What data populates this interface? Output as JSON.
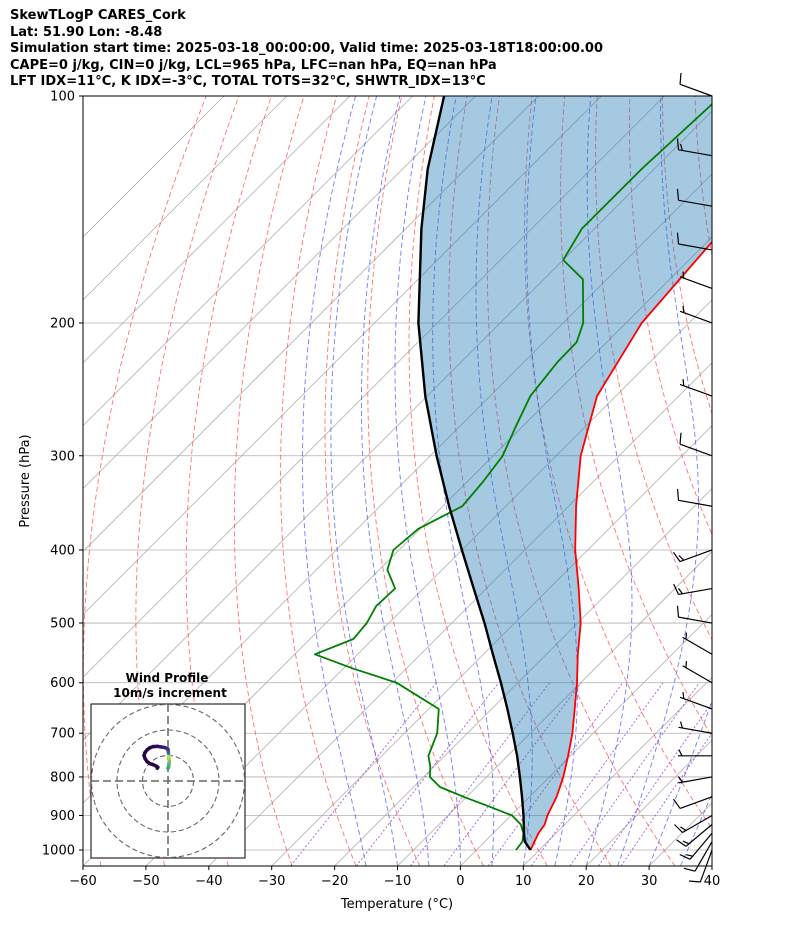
{
  "header": {
    "line1": "SkewTLogP CARES_Cork",
    "line2": "Lat: 51.90   Lon: -8.48",
    "line3": "Simulation start time: 2025-03-18_00:00:00, Valid time: 2025-03-18T18:00:00.00",
    "line4": "CAPE=0 j/kg, CIN=0 j/kg, LCL=965 hPa, LFC=nan hPa, EQ=nan hPa",
    "line5": "LFT IDX=11°C, K IDX=-3°C, TOTAL TOTS=32°C, SHWTR_IDX=13°C"
  },
  "chart_data": {
    "type": "line",
    "xlabel": "Temperature (°C)",
    "ylabel": "Pressure (hPa)",
    "xlim": [
      -60,
      40
    ],
    "ylim": [
      1050,
      100
    ],
    "x_ticks": [
      -60,
      -50,
      -40,
      -30,
      -20,
      -10,
      0,
      10,
      20,
      30,
      40
    ],
    "x_tick_labels": [
      "−60",
      "−50",
      "−40",
      "−30",
      "−20",
      "−10",
      "0",
      "10",
      "20",
      "30",
      "40"
    ],
    "y_ticks": [
      1000,
      900,
      800,
      700,
      600,
      500,
      400,
      300,
      200,
      100
    ],
    "y_tick_labels": [
      "1000",
      "900",
      "800",
      "700",
      "600",
      "500",
      "400",
      "300",
      "200",
      "100"
    ],
    "grid": true,
    "skew": 45,
    "series": [
      {
        "role": "temperature",
        "color": "#ff0000",
        "pressure": [
          1000,
          975,
          950,
          925,
          900,
          850,
          800,
          750,
          700,
          650,
          600,
          550,
          500,
          450,
          400,
          350,
          300,
          250,
          200,
          150,
          125,
          110,
          100
        ],
        "values": [
          8.6,
          7.9,
          7.2,
          6.8,
          5.8,
          4.3,
          2.2,
          -0.4,
          -3.3,
          -6.8,
          -10.6,
          -15.0,
          -19.5,
          -25.3,
          -32.0,
          -38.8,
          -46.1,
          -53.0,
          -57.5,
          -59.5,
          -58.0,
          -54.5,
          -52.5
        ]
      },
      {
        "role": "dewpoint",
        "color": "#008000",
        "pressure": [
          1000,
          975,
          950,
          925,
          900,
          875,
          850,
          825,
          800,
          775,
          750,
          700,
          650,
          600,
          575,
          550,
          525,
          500,
          475,
          450,
          425,
          400,
          375,
          350,
          325,
          300,
          275,
          250,
          225,
          212,
          200,
          175,
          165,
          150,
          125,
          100
        ],
        "values": [
          6.3,
          6.0,
          4.8,
          3.0,
          0.2,
          -5.0,
          -10.5,
          -15.8,
          -19.0,
          -20.6,
          -22.6,
          -24.8,
          -28.4,
          -39.3,
          -48.3,
          -56.8,
          -53.1,
          -53.5,
          -54.7,
          -54.5,
          -58.7,
          -60.9,
          -60.3,
          -56.9,
          -57.5,
          -58.5,
          -61.0,
          -63.6,
          -64.7,
          -64.8,
          -66.8,
          -73.8,
          -80.0,
          -82.0,
          -82.0,
          -81.0
        ]
      },
      {
        "role": "parcel",
        "color": "#000000",
        "pressure": [
          1000,
          975,
          965,
          950,
          900,
          850,
          800,
          750,
          700,
          650,
          600,
          550,
          500,
          450,
          400,
          350,
          300,
          250,
          200,
          150,
          125,
          100
        ],
        "values": [
          8.6,
          6.4,
          5.8,
          4.9,
          2.0,
          -1.2,
          -4.7,
          -8.5,
          -12.8,
          -17.5,
          -22.7,
          -28.5,
          -34.8,
          -42.0,
          -50.0,
          -59.0,
          -69.0,
          -80.3,
          -93.0,
          -107.5,
          -116.0,
          -125.0
        ]
      }
    ],
    "dry_adiabats_theta_K": [
      213,
      223,
      233,
      243,
      253,
      263,
      273,
      283,
      293,
      303,
      313,
      323,
      333,
      343,
      353,
      363,
      373,
      383,
      393,
      403,
      413,
      423,
      433,
      443,
      453,
      463,
      473
    ],
    "moist_adiabats_start_C": [
      -15,
      -10,
      -5,
      0,
      5,
      10,
      15,
      20,
      25,
      30,
      35,
      40,
      45
    ],
    "mixing_ratios_g_kg": [
      0.4,
      1,
      2,
      3,
      5,
      8,
      12,
      16,
      20
    ],
    "inset": {
      "title": "Wind Profile",
      "subtitle": "10m/s increment",
      "rings_ms": [
        10,
        20,
        30
      ],
      "u": [
        0,
        0.3,
        0.4,
        0.5,
        0.4,
        0.3,
        0.2,
        0.1,
        0.0,
        -0.5,
        -1.5,
        -3.0,
        -4.2,
        -5.8,
        -7.2,
        -8.2,
        -9.0,
        -9.4,
        -9.0,
        -8.2,
        -7.0,
        -5.8,
        -4.6,
        -4.0,
        -4.2
      ],
      "v": [
        5.0,
        5.8,
        6.8,
        7.8,
        8.8,
        9.8,
        10.8,
        11.6,
        12.4,
        12.8,
        13.2,
        13.4,
        13.6,
        13.5,
        13.0,
        12.2,
        11.2,
        10.0,
        8.8,
        7.6,
        6.8,
        6.4,
        5.8,
        5.4,
        5.0
      ]
    },
    "wind_barbs": {
      "pressure": [
        1000,
        975,
        950,
        925,
        900,
        850,
        800,
        750,
        700,
        650,
        600,
        550,
        500,
        450,
        400,
        350,
        300,
        250,
        200,
        180,
        160,
        140,
        120,
        100
      ],
      "speed_kt": [
        10,
        12,
        15,
        15,
        15,
        10,
        5,
        5,
        5,
        5,
        5,
        5,
        10,
        15,
        15,
        10,
        10,
        5,
        5,
        5,
        10,
        10,
        15,
        10
      ],
      "direction_deg": [
        200,
        210,
        220,
        230,
        240,
        250,
        260,
        270,
        280,
        290,
        300,
        300,
        280,
        260,
        250,
        280,
        290,
        290,
        290,
        290,
        280,
        280,
        280,
        290
      ]
    }
  }
}
